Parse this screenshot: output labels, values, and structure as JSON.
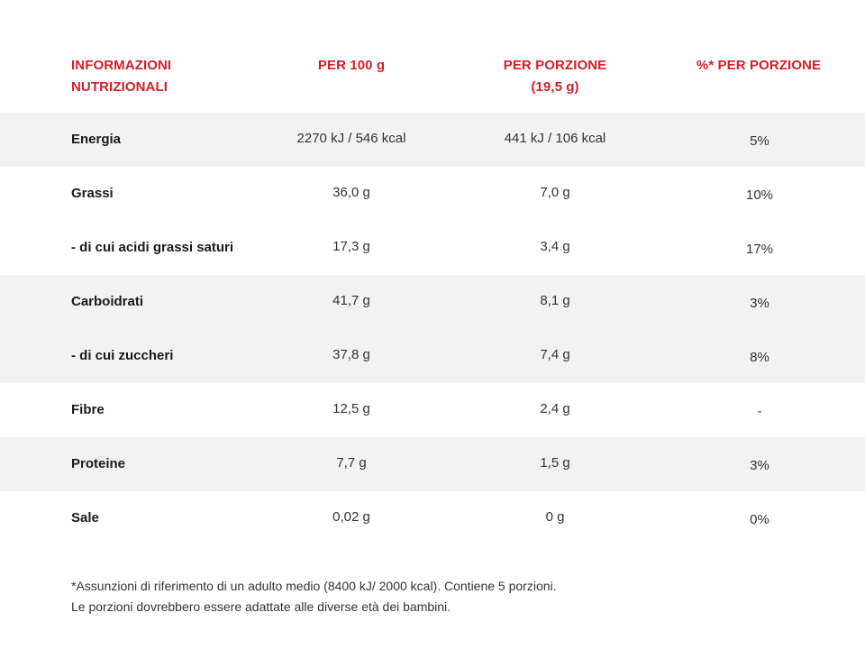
{
  "table": {
    "headers": [
      {
        "lines": [
          "INFORMAZIONI",
          "NUTRIZIONALI"
        ]
      },
      {
        "lines": [
          "PER 100 g"
        ]
      },
      {
        "lines": [
          "PER PORZIONE",
          "(19,5 g)"
        ]
      },
      {
        "lines": [
          "%* PER PORZIONE"
        ]
      }
    ],
    "rows": [
      {
        "label": "Energia",
        "per100": "2270 kJ / 546 kcal",
        "perPortion": "441 kJ / 106 kcal",
        "pct": "5%"
      },
      {
        "label": "Grassi",
        "per100": "36,0 g",
        "perPortion": "7,0 g",
        "pct": "10%"
      },
      {
        "label": "- di cui acidi grassi saturi",
        "per100": "17,3 g",
        "perPortion": "3,4  g",
        "pct": "17%"
      },
      {
        "label": "Carboidrati",
        "per100": "41,7 g",
        "perPortion": "8,1 g",
        "pct": "3%"
      },
      {
        "label": "- di cui zuccheri",
        "per100": "37,8 g",
        "perPortion": "7,4 g",
        "pct": "8%"
      },
      {
        "label": "Fibre",
        "per100": "12,5 g",
        "perPortion": "2,4 g",
        "pct": "-"
      },
      {
        "label": "Proteine",
        "per100": "7,7 g",
        "perPortion": "1,5 g",
        "pct": "3%"
      },
      {
        "label": "Sale",
        "per100": "0,02 g",
        "perPortion": "0 g",
        "pct": "0%"
      }
    ]
  },
  "footnote": {
    "line1": "*Assunzioni di riferimento di un adulto medio (8400 kJ/ 2000 kcal). Contiene 5 porzioni.",
    "line2": "Le porzioni dovrebbero essere adattate alle diverse età dei bambini."
  },
  "colors": {
    "accent": "#d21f2b",
    "row_shade": "#f2f2f2"
  }
}
